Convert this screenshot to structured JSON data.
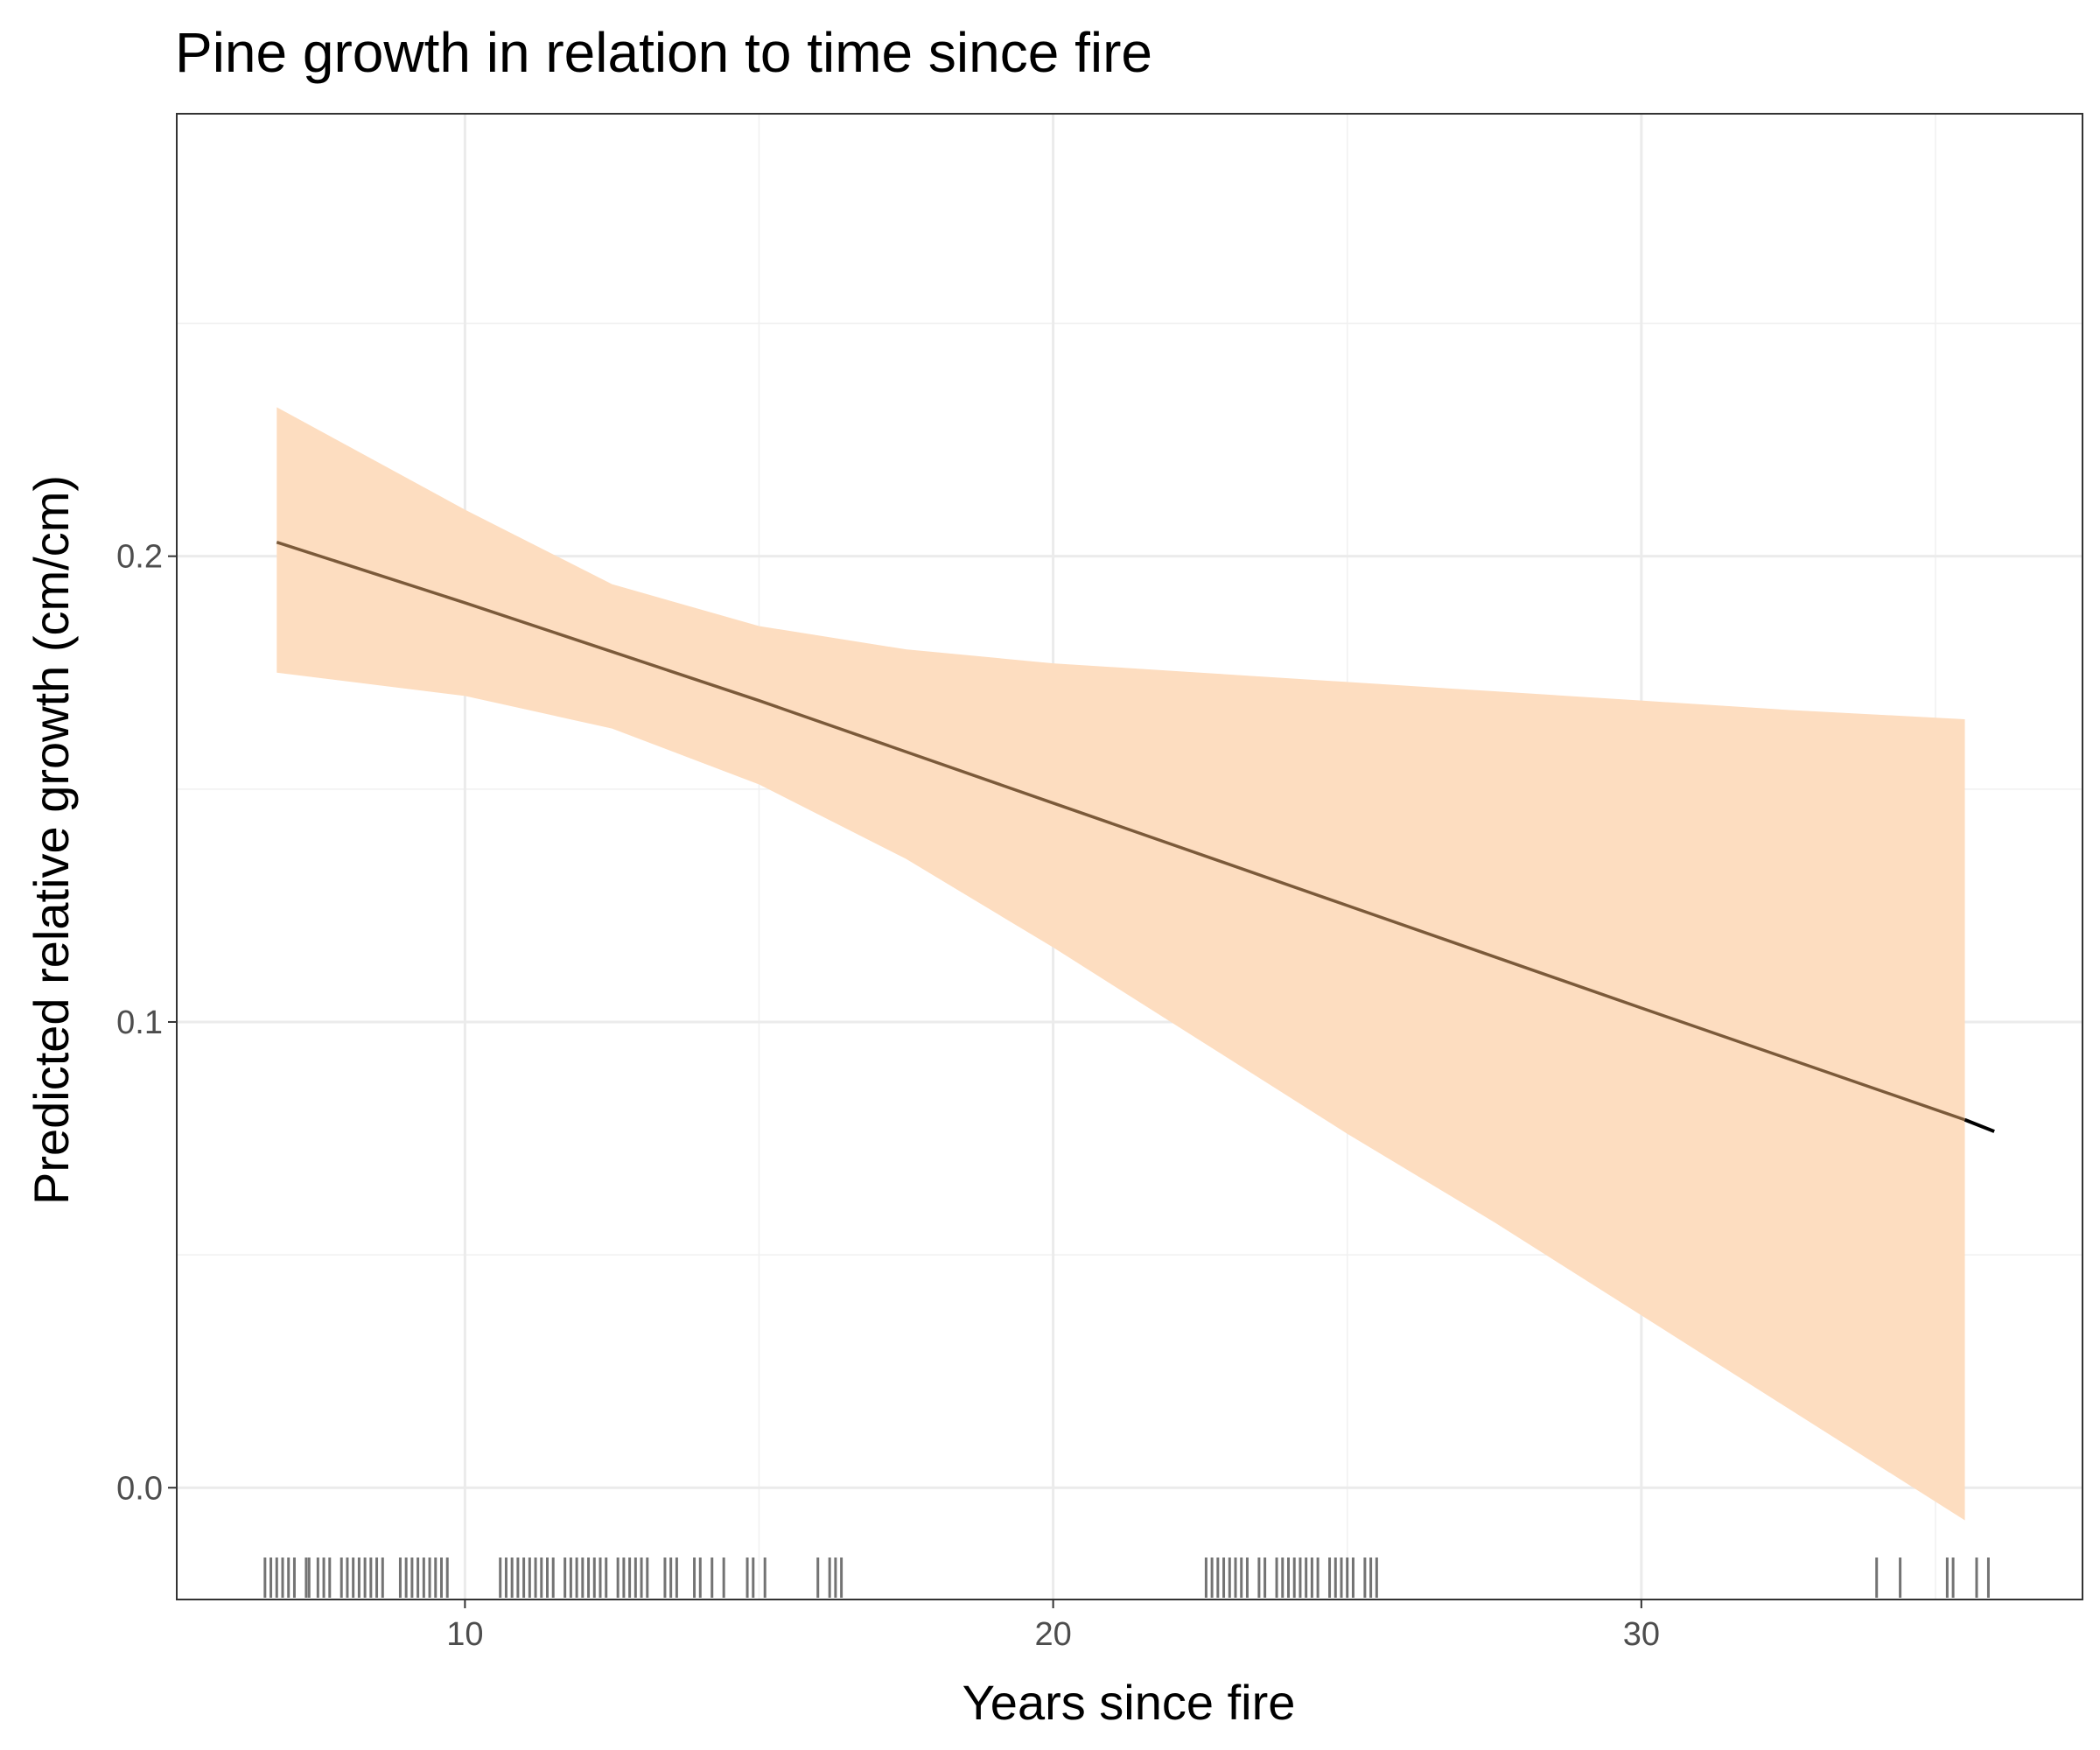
{
  "chart_data": {
    "type": "line",
    "title": "Pine growth in relation to time since fire",
    "xlabel": "Years since fire",
    "ylabel": "Predicted relative growth (cm/cm)",
    "xlim": [
      5.1,
      37.5
    ],
    "ylim": [
      -0.024,
      0.295
    ],
    "x_ticks": [
      10,
      20,
      30
    ],
    "x_tick_labels": [
      "10",
      "20",
      "30"
    ],
    "y_ticks": [
      0.0,
      0.1,
      0.2
    ],
    "y_tick_labels": [
      "0.0",
      "0.1",
      "0.2"
    ],
    "x_minor_ticks": [
      15,
      25,
      35
    ],
    "y_minor_ticks": [
      0.05,
      0.15,
      0.25
    ],
    "grid": true,
    "legend": "none",
    "series": [
      {
        "kind": "fit-line",
        "color": "#7b5a3a",
        "x": [
          6.8,
          10,
          15,
          20,
          25,
          30,
          35.5
        ],
        "y": [
          0.203,
          0.19,
          0.169,
          0.147,
          0.125,
          0.103,
          0.079
        ]
      },
      {
        "kind": "extrapolated-line",
        "color": "#000000",
        "x": [
          35.5,
          36.0
        ],
        "y": [
          0.079,
          0.0765
        ]
      },
      {
        "kind": "confidence-band",
        "color": "#fdddc0",
        "x": [
          6.8,
          10,
          12.5,
          15,
          17.5,
          20,
          22.5,
          25,
          27.5,
          30,
          32.5,
          35.5
        ],
        "upper": [
          0.232,
          0.21,
          0.194,
          0.185,
          0.18,
          0.177,
          0.175,
          0.173,
          0.171,
          0.169,
          0.167,
          0.165
        ],
        "lower": [
          0.175,
          0.17,
          0.163,
          0.151,
          0.135,
          0.116,
          0.096,
          0.076,
          0.057,
          0.037,
          0.017,
          -0.007
        ]
      }
    ],
    "rug": {
      "color": "#000000",
      "x": [
        6.6,
        6.7,
        6.8,
        6.9,
        7.0,
        7.1,
        7.3,
        7.35,
        7.5,
        7.6,
        7.7,
        7.9,
        8.0,
        8.1,
        8.2,
        8.3,
        8.4,
        8.5,
        8.6,
        8.9,
        9.0,
        9.1,
        9.2,
        9.3,
        9.4,
        9.5,
        9.6,
        9.7,
        10.6,
        10.7,
        10.8,
        10.9,
        11.0,
        11.1,
        11.2,
        11.3,
        11.4,
        11.5,
        11.7,
        11.8,
        11.9,
        12.0,
        12.1,
        12.2,
        12.3,
        12.4,
        12.6,
        12.7,
        12.8,
        12.9,
        13.0,
        13.1,
        13.4,
        13.5,
        13.6,
        13.9,
        14.0,
        14.2,
        14.4,
        14.8,
        14.9,
        15.1,
        16.0,
        16.2,
        16.3,
        16.4,
        22.6,
        22.7,
        22.8,
        22.9,
        23.0,
        23.1,
        23.2,
        23.3,
        23.5,
        23.6,
        23.8,
        23.9,
        24.0,
        24.1,
        24.2,
        24.3,
        24.4,
        24.5,
        24.7,
        24.8,
        24.9,
        25.0,
        25.1,
        25.3,
        25.4,
        25.5,
        34.0,
        34.4,
        35.2,
        35.3,
        35.7,
        35.9
      ]
    }
  }
}
